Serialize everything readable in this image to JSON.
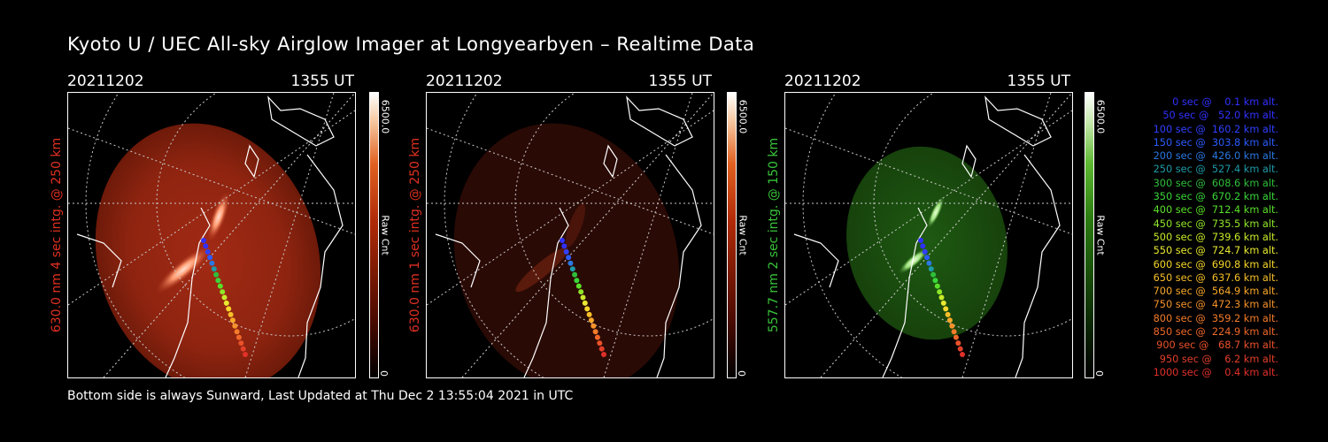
{
  "title": "Kyoto U / UEC All-sky Airglow Imager at Longyearbyen – Realtime Data",
  "footer": "Bottom side is always Sunward, Last Updated at Thu Dec  2 13:55:04 2021 in UTC",
  "colors": {
    "red_label": "#e03020",
    "green_label": "#39c43a"
  },
  "panels": [
    {
      "date": "20211202",
      "time": "1355 UT",
      "ylabel": "630.0 nm 4 sec intg. @ 250 km",
      "cbar_max": "6500.0",
      "cbar_unit": "Raw Cnt",
      "cbar_min": "0",
      "color": "red"
    },
    {
      "date": "20211202",
      "time": "1355 UT",
      "ylabel": "630.0 nm 1 sec intg. @ 250 km",
      "cbar_max": "6500.0",
      "cbar_unit": "Raw Cnt",
      "cbar_min": "0",
      "color": "red"
    },
    {
      "date": "20211202",
      "time": "1355 UT",
      "ylabel": "557.7 nm 2 sec intg. @ 150 km",
      "cbar_max": "6500.0",
      "cbar_unit": "Raw Cnt",
      "cbar_min": "0",
      "color": "green"
    }
  ],
  "legend": [
    {
      "text": "   0 sec @    0.1 km alt.",
      "color": "#3030ff"
    },
    {
      "text": "  50 sec @   52.0 km alt.",
      "color": "#3030ff"
    },
    {
      "text": " 100 sec @  160.2 km alt.",
      "color": "#2f40ff"
    },
    {
      "text": " 150 sec @  303.8 km alt.",
      "color": "#2a5cff"
    },
    {
      "text": " 200 sec @  426.0 km alt.",
      "color": "#2a78e0"
    },
    {
      "text": " 250 sec @  527.4 km alt.",
      "color": "#1f9aa8"
    },
    {
      "text": " 300 sec @  608.6 km alt.",
      "color": "#2fbf3a"
    },
    {
      "text": " 350 sec @  670.2 km alt.",
      "color": "#3ad63a"
    },
    {
      "text": " 400 sec @  712.4 km alt.",
      "color": "#59e02a"
    },
    {
      "text": " 450 sec @  735.5 km alt.",
      "color": "#8fe62a"
    },
    {
      "text": " 500 sec @  739.6 km alt.",
      "color": "#c7ea2a"
    },
    {
      "text": " 550 sec @  724.7 km alt.",
      "color": "#e8ea30"
    },
    {
      "text": " 600 sec @  690.8 km alt.",
      "color": "#f5d62a"
    },
    {
      "text": " 650 sec @  637.6 km alt.",
      "color": "#f7bf2a"
    },
    {
      "text": " 700 sec @  564.9 km alt.",
      "color": "#f8a82a"
    },
    {
      "text": " 750 sec @  472.3 km alt.",
      "color": "#f7922a"
    },
    {
      "text": " 800 sec @  359.2 km alt.",
      "color": "#f47c2a"
    },
    {
      "text": " 850 sec @  224.9 km alt.",
      "color": "#ef672a"
    },
    {
      "text": " 900 sec @   68.7 km alt.",
      "color": "#ea512a"
    },
    {
      "text": " 950 sec @    6.2 km alt.",
      "color": "#e43f2a"
    },
    {
      "text": "1000 sec @    0.4 km alt.",
      "color": "#e0302a"
    }
  ]
}
